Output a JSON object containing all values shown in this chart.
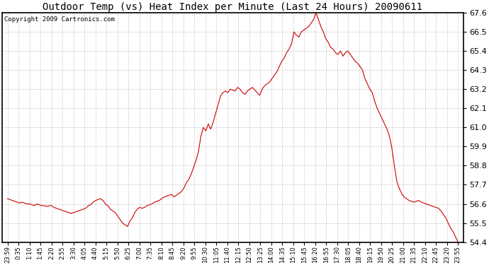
{
  "title": "Outdoor Temp (vs) Heat Index per Minute (Last 24 Hours) 20090611",
  "copyright": "Copyright 2009 Cartronics.com",
  "line_color": "#cc0000",
  "background_color": "#ffffff",
  "grid_color": "#bbbbbb",
  "ylim": [
    54.4,
    67.6
  ],
  "yticks": [
    54.4,
    55.5,
    56.6,
    57.7,
    58.8,
    59.9,
    61.0,
    62.1,
    63.2,
    64.3,
    65.4,
    66.5,
    67.6
  ],
  "xtick_labels": [
    "23:59",
    "0:35",
    "1:10",
    "1:45",
    "2:20",
    "2:55",
    "3:30",
    "4:05",
    "4:40",
    "5:15",
    "5:50",
    "6:25",
    "7:00",
    "7:35",
    "8:10",
    "8:45",
    "9:20",
    "9:55",
    "10:30",
    "11:05",
    "11:40",
    "12:15",
    "12:50",
    "13:25",
    "14:00",
    "14:35",
    "15:10",
    "15:45",
    "16:20",
    "16:55",
    "17:30",
    "18:05",
    "18:40",
    "19:15",
    "19:50",
    "20:25",
    "21:00",
    "21:35",
    "22:10",
    "22:45",
    "23:20",
    "23:55"
  ],
  "y_values": [
    56.9,
    56.85,
    56.8,
    56.75,
    56.7,
    56.65,
    56.7,
    56.65,
    56.6,
    56.6,
    56.55,
    56.5,
    56.6,
    56.55,
    56.5,
    56.5,
    56.45,
    56.5,
    56.5,
    56.4,
    56.35,
    56.3,
    56.25,
    56.2,
    56.15,
    56.1,
    56.05,
    56.1,
    56.15,
    56.2,
    56.25,
    56.3,
    56.35,
    56.5,
    56.55,
    56.7,
    56.8,
    56.85,
    56.9,
    56.8,
    56.6,
    56.5,
    56.3,
    56.2,
    56.1,
    55.9,
    55.7,
    55.5,
    55.4,
    55.3,
    55.6,
    55.8,
    56.1,
    56.3,
    56.4,
    56.35,
    56.4,
    56.5,
    56.55,
    56.6,
    56.7,
    56.75,
    56.8,
    56.9,
    57.0,
    57.05,
    57.1,
    57.15,
    57.0,
    57.1,
    57.2,
    57.3,
    57.5,
    57.8,
    58.0,
    58.3,
    58.7,
    59.1,
    59.6,
    60.5,
    61.0,
    60.8,
    61.2,
    60.9,
    61.3,
    61.8,
    62.3,
    62.8,
    63.0,
    63.1,
    63.0,
    63.2,
    63.15,
    63.1,
    63.3,
    63.2,
    63.0,
    62.9,
    63.1,
    63.2,
    63.3,
    63.15,
    63.0,
    62.85,
    63.2,
    63.4,
    63.5,
    63.6,
    63.8,
    64.0,
    64.2,
    64.5,
    64.8,
    65.0,
    65.3,
    65.5,
    65.8,
    66.5,
    66.3,
    66.2,
    66.5,
    66.6,
    66.7,
    66.8,
    67.0,
    67.2,
    67.6,
    67.2,
    66.8,
    66.5,
    66.1,
    65.9,
    65.6,
    65.5,
    65.3,
    65.2,
    65.4,
    65.1,
    65.3,
    65.4,
    65.2,
    65.0,
    64.8,
    64.7,
    64.5,
    64.3,
    63.8,
    63.5,
    63.2,
    63.0,
    62.5,
    62.1,
    61.8,
    61.5,
    61.2,
    60.9,
    60.5,
    59.8,
    58.8,
    57.9,
    57.5,
    57.2,
    57.0,
    56.9,
    56.8,
    56.75,
    56.7,
    56.75,
    56.8,
    56.7,
    56.65,
    56.6,
    56.55,
    56.5,
    56.45,
    56.4,
    56.35,
    56.2,
    56.0,
    55.8,
    55.5,
    55.2,
    55.0,
    54.7,
    54.4
  ],
  "n_xticks": 42,
  "title_fontsize": 10,
  "copyright_fontsize": 6.5,
  "ytick_fontsize": 8,
  "xtick_fontsize": 6
}
